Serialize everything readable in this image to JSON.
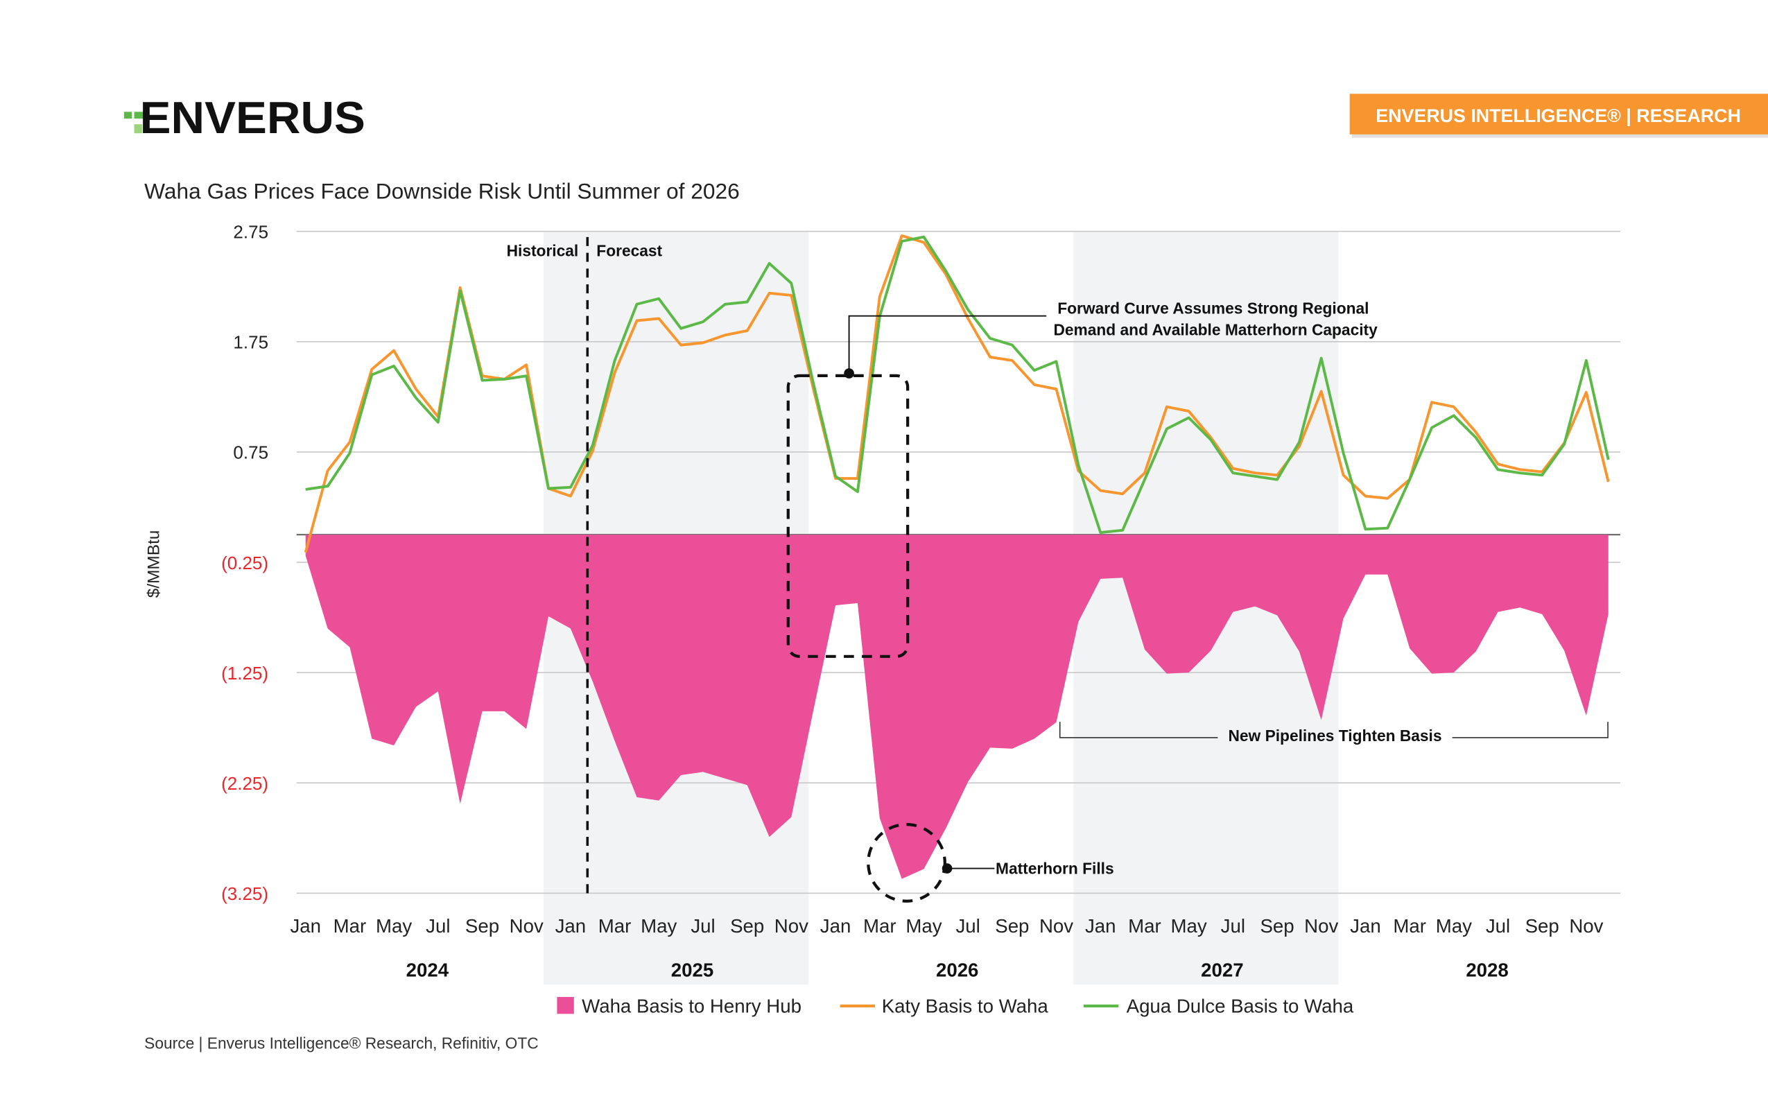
{
  "header": {
    "logo_text": "ENVERUS",
    "badge_label": "ENVERUS INTELLIGENCE® | RESEARCH",
    "brand_orange": "#F7962F",
    "logo_green": "#5CB947"
  },
  "chart_data": {
    "type": "line+area",
    "title": "Waha Gas Prices Face Downside Risk Until Summer of 2026",
    "ylabel": "$/MMBtu",
    "ylim": [
      -3.25,
      2.75
    ],
    "y_ticks": [
      {
        "value": 2.75,
        "label": "2.75"
      },
      {
        "value": 1.75,
        "label": "1.75"
      },
      {
        "value": 0.75,
        "label": "0.75"
      },
      {
        "value": -0.25,
        "label": "(0.25)"
      },
      {
        "value": -1.25,
        "label": "(1.25)"
      },
      {
        "value": -2.25,
        "label": "(2.25)"
      },
      {
        "value": -3.25,
        "label": "(3.25)"
      }
    ],
    "grid": true,
    "negative_label_color": "#E8262C",
    "month_tick_labels": [
      "Jan",
      "Mar",
      "May",
      "Jul",
      "Sep",
      "Nov"
    ],
    "years": [
      "2024",
      "2025",
      "2026",
      "2027",
      "2028"
    ],
    "shaded_years": [
      "2025",
      "2027"
    ],
    "legend_position": "bottom",
    "series": [
      {
        "name": "Waha Basis to Henry Hub",
        "type": "area",
        "color": "#EA4F98",
        "values": [
          -0.19,
          -0.85,
          -1.02,
          -1.85,
          -1.91,
          -1.56,
          -1.42,
          -2.44,
          -1.6,
          -1.6,
          -1.76,
          -0.74,
          -0.85,
          -1.33,
          -1.87,
          -2.38,
          -2.41,
          -2.18,
          -2.15,
          -2.21,
          -2.27,
          -2.74,
          -2.56,
          -1.59,
          -0.64,
          -0.62,
          -2.57,
          -3.12,
          -3.03,
          -2.66,
          -2.24,
          -1.93,
          -1.94,
          -1.85,
          -1.7,
          -0.79,
          -0.4,
          -0.39,
          -1.04,
          -1.26,
          -1.25,
          -1.05,
          -0.7,
          -0.65,
          -0.73,
          -1.06,
          -1.68,
          -0.76,
          -0.36,
          -0.36,
          -1.03,
          -1.26,
          -1.25,
          -1.06,
          -0.7,
          -0.66,
          -0.72,
          -1.05,
          -1.64,
          -0.72
        ]
      },
      {
        "name": "Katy Basis to Waha",
        "type": "line",
        "color": "#F7962F",
        "values": [
          -0.16,
          0.58,
          0.84,
          1.5,
          1.67,
          1.32,
          1.07,
          2.24,
          1.44,
          1.41,
          1.54,
          0.42,
          0.35,
          0.76,
          1.47,
          1.94,
          1.96,
          1.72,
          1.74,
          1.81,
          1.85,
          2.19,
          2.17,
          1.32,
          0.51,
          0.51,
          2.16,
          2.71,
          2.65,
          2.36,
          1.96,
          1.61,
          1.58,
          1.36,
          1.32,
          0.58,
          0.4,
          0.37,
          0.56,
          1.16,
          1.12,
          0.88,
          0.6,
          0.56,
          0.54,
          0.8,
          1.3,
          0.54,
          0.35,
          0.33,
          0.5,
          1.2,
          1.16,
          0.93,
          0.64,
          0.59,
          0.57,
          0.83,
          1.29,
          0.48
        ]
      },
      {
        "name": "Agua Dulce Basis to Waha",
        "type": "line",
        "color": "#5CB947",
        "values": [
          0.41,
          0.44,
          0.74,
          1.45,
          1.53,
          1.24,
          1.02,
          2.21,
          1.4,
          1.41,
          1.44,
          0.42,
          0.43,
          0.81,
          1.58,
          2.09,
          2.14,
          1.87,
          1.93,
          2.09,
          2.11,
          2.46,
          2.28,
          1.37,
          0.53,
          0.39,
          1.98,
          2.66,
          2.7,
          2.39,
          2.04,
          1.78,
          1.72,
          1.49,
          1.57,
          0.63,
          0.02,
          0.04,
          0.5,
          0.96,
          1.06,
          0.86,
          0.56,
          0.53,
          0.5,
          0.84,
          1.6,
          0.74,
          0.05,
          0.06,
          0.5,
          0.97,
          1.08,
          0.88,
          0.59,
          0.56,
          0.54,
          0.82,
          1.58,
          0.68
        ]
      }
    ],
    "annotations": {
      "historical": "Historical",
      "forecast": "Forecast",
      "forward_curve_line1": "Forward Curve Assumes Strong Regional",
      "forward_curve_line2": "Demand and Available Matterhorn Capacity",
      "matterhorn": "Matterhorn Fills",
      "pipelines": "New Pipelines Tighten Basis"
    }
  },
  "footer": {
    "source": "Source | Enverus Intelligence® Research, Refinitiv, OTC"
  }
}
